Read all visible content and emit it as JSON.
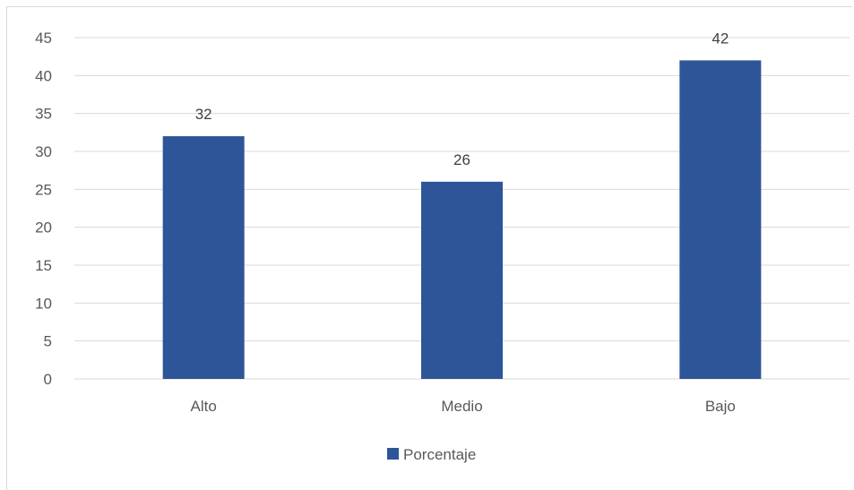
{
  "chart_data": {
    "type": "bar",
    "categories": [
      "Alto",
      "Medio",
      "Bajo"
    ],
    "series": [
      {
        "name": "Porcentaje",
        "values": [
          32,
          26,
          42
        ],
        "color": "#2e5597"
      }
    ],
    "title": "",
    "xlabel": "",
    "ylabel": "",
    "ylim": [
      0,
      45
    ],
    "yticks": [
      0,
      5,
      10,
      15,
      20,
      25,
      30,
      35,
      40,
      45
    ],
    "grid": true,
    "legend_position": "bottom",
    "data_labels": true
  }
}
